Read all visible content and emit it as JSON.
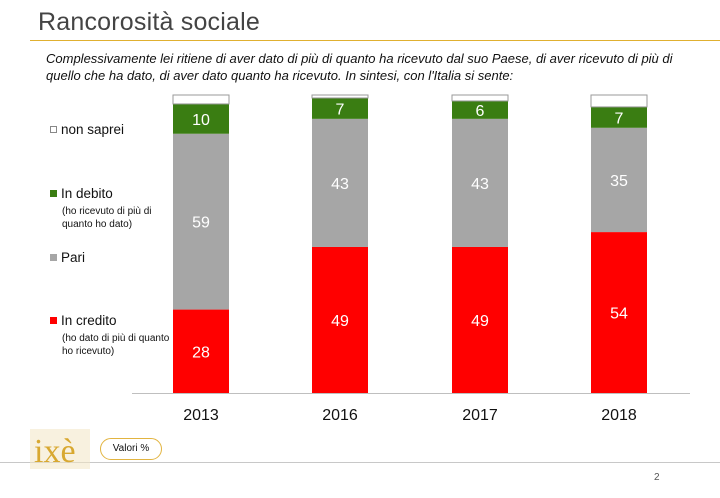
{
  "title": "Rancorosità sociale",
  "subtitle": "Complessivamente lei ritiene di aver dato di più di quanto ha ricevuto dal suo Paese, di aver ricevuto di più di quello che ha dato, di aver dato quanto ha ricevuto. In sintesi, con l'Italia si sente:",
  "legend": {
    "non_saprei": "non saprei",
    "in_debito": "In debito",
    "in_debito_note": "(ho ricevuto di più di quanto ho dato)",
    "pari": "Pari",
    "in_credito": "In credito",
    "in_credito_note": "(ho dato di più di quanto ho ricevuto)"
  },
  "footer": {
    "logo_text": "ixè",
    "values_label": "Valori %",
    "page_number": "2"
  },
  "colors": {
    "in_credito": "#ff0000",
    "pari": "#a6a6a6",
    "in_debito": "#3a7d12",
    "non_saprei": "#ffffff",
    "accent": "#e2b440"
  },
  "chart_data": {
    "type": "bar",
    "stacked": true,
    "categories": [
      "2013",
      "2016",
      "2017",
      "2018"
    ],
    "series": [
      {
        "name": "In credito",
        "values": [
          28,
          49,
          49,
          54
        ]
      },
      {
        "name": "Pari",
        "values": [
          59,
          43,
          43,
          35
        ]
      },
      {
        "name": "In debito",
        "values": [
          10,
          7,
          6,
          7
        ]
      },
      {
        "name": "non saprei",
        "values": [
          3,
          1,
          2,
          4
        ]
      }
    ],
    "data_labels": {
      "In credito": [
        "28",
        "49",
        "49",
        "54"
      ],
      "Pari": [
        "59",
        "43",
        "43",
        "35"
      ],
      "In debito": [
        "10",
        "7",
        "6",
        "7"
      ]
    },
    "ylim": [
      0,
      100
    ],
    "grid": false,
    "legend_position": "left"
  }
}
